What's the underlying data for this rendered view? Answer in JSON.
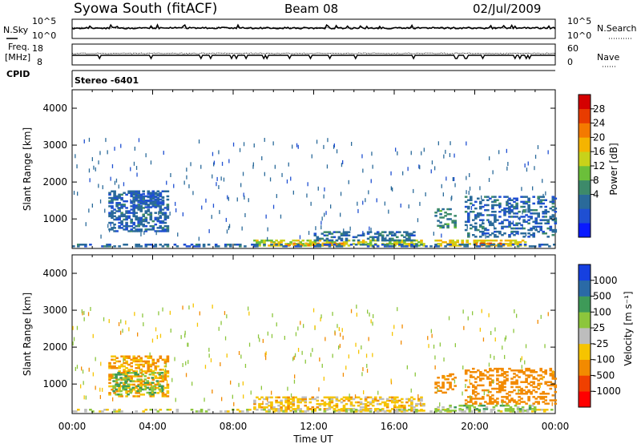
{
  "header": {
    "site": "Syowa South (fitACF)",
    "beam": "Beam 08",
    "date": "02/Jul/2009"
  },
  "panel_labels": {
    "nsky": "N.Sky",
    "freq_line1": "Freq.",
    "freq_line2": "[MHz]",
    "cpid": "CPID",
    "nsearch": "N.Search",
    "nave": "Nave",
    "program": "Stereo -6401"
  },
  "noise_axis": {
    "left_ticks": [
      "10^5",
      "10^0"
    ],
    "right_ticks": [
      "10^5",
      "10^0"
    ]
  },
  "freq_axis": {
    "left_ticks": [
      "18",
      "8"
    ],
    "right_ticks": [
      "60",
      "0"
    ]
  },
  "colors": {
    "power_scale": [
      "#0a1aff",
      "#1f4fd2",
      "#2a6a9a",
      "#3d8a6a",
      "#6bbf3a",
      "#c8d21a",
      "#f5b400",
      "#f47a00",
      "#e83c00",
      "#d40000"
    ],
    "velocity_scale": [
      "#ff0000",
      "#f04000",
      "#f28a00",
      "#f6c400",
      "#bdbdbd",
      "#8cc63c",
      "#3e9a58",
      "#2a6aa6",
      "#1640e0"
    ]
  },
  "power_colorbar": {
    "label": "Power [dB]",
    "ticks": [
      "28",
      "24",
      "20",
      "16",
      "12",
      "8",
      "4"
    ]
  },
  "velocity_colorbar": {
    "label": "Velocity [m s⁻¹]",
    "ticks": [
      "1000",
      "500",
      "100",
      "25",
      "-25",
      "-100",
      "-500",
      "-1000"
    ]
  },
  "chart_data": [
    {
      "type": "heatmap",
      "name": "power",
      "ylabel": "Slant Range [km]",
      "xlim": [
        "00:00",
        "24:00"
      ],
      "ylim": [
        200,
        4500
      ],
      "yticks": [
        1000,
        2000,
        3000,
        4000
      ],
      "zlim": [
        0,
        30
      ],
      "regions": [
        {
          "t0": 1.8,
          "t1": 4.8,
          "r0": 650,
          "r1": 1750,
          "level": 6,
          "density": 0.5
        },
        {
          "t0": 3.0,
          "t1": 4.5,
          "r0": 1300,
          "r1": 1700,
          "level": 5,
          "density": 0.55
        },
        {
          "t0": 9.0,
          "t1": 17.5,
          "r0": 260,
          "r1": 420,
          "level": 16,
          "density": 0.55
        },
        {
          "t0": 10.0,
          "t1": 13.5,
          "r0": 270,
          "r1": 360,
          "level": 22,
          "density": 0.6
        },
        {
          "t0": 12.0,
          "t1": 17.0,
          "r0": 400,
          "r1": 650,
          "level": 7,
          "density": 0.45
        },
        {
          "t0": 18.0,
          "t1": 22.5,
          "r0": 260,
          "r1": 400,
          "level": 18,
          "density": 0.55
        },
        {
          "t0": 20.0,
          "t1": 21.5,
          "r0": 270,
          "r1": 360,
          "level": 24,
          "density": 0.5
        },
        {
          "t0": 18.0,
          "t1": 19.0,
          "r0": 750,
          "r1": 1250,
          "level": 9,
          "density": 0.35
        },
        {
          "t0": 19.5,
          "t1": 24.0,
          "r0": 500,
          "r1": 1600,
          "level": 6,
          "density": 0.35
        },
        {
          "t0": 0.0,
          "t1": 24.0,
          "r0": 240,
          "r1": 300,
          "level": 6,
          "density": 0.35
        }
      ]
    },
    {
      "type": "heatmap",
      "name": "velocity",
      "ylabel": "Slant Range [km]",
      "xlabel": "Time UT",
      "xticks": [
        "00:00",
        "04:00",
        "08:00",
        "12:00",
        "16:00",
        "20:00",
        "00:00"
      ],
      "ylim": [
        200,
        4500
      ],
      "yticks": [
        1000,
        2000,
        3000,
        4000
      ],
      "zlim": [
        -1000,
        1000
      ],
      "regions": [
        {
          "t0": 1.8,
          "t1": 4.8,
          "r0": 650,
          "r1": 1750,
          "level": -100,
          "density": 0.45
        },
        {
          "t0": 2.0,
          "t1": 4.5,
          "r0": 700,
          "r1": 1300,
          "level": 100,
          "density": 0.3
        },
        {
          "t0": 9.0,
          "t1": 17.5,
          "r0": 260,
          "r1": 650,
          "level": -60,
          "density": 0.45
        },
        {
          "t0": 0.0,
          "t1": 24.0,
          "r0": 240,
          "r1": 320,
          "level": 0,
          "density": 0.4
        },
        {
          "t0": 18.0,
          "t1": 19.0,
          "r0": 750,
          "r1": 1250,
          "level": -200,
          "density": 0.35
        },
        {
          "t0": 19.5,
          "t1": 24.0,
          "r0": 450,
          "r1": 1400,
          "level": -250,
          "density": 0.35
        },
        {
          "t0": 18.0,
          "t1": 23.0,
          "r0": 260,
          "r1": 420,
          "level": 60,
          "density": 0.4
        }
      ]
    }
  ]
}
